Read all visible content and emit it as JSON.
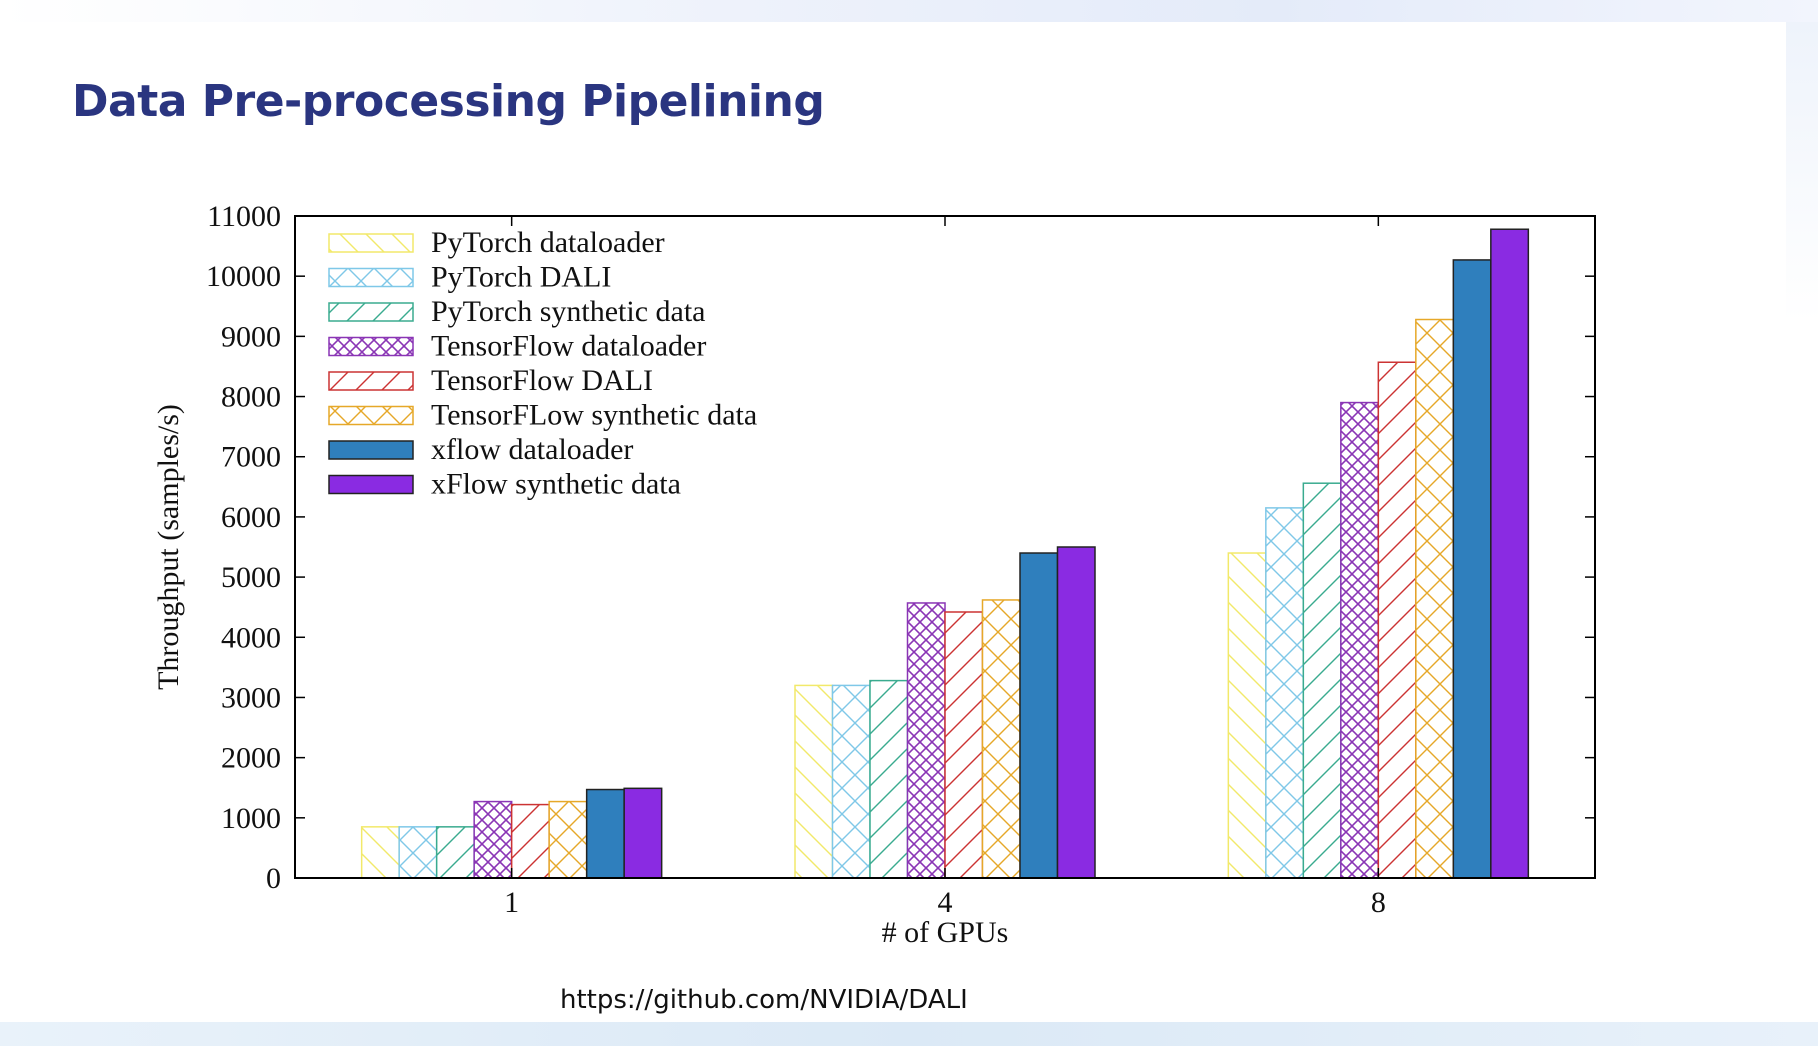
{
  "slide": {
    "title": "Data Pre-processing Pipelining",
    "source": "https://github.com/NVIDIA/DALI"
  },
  "chart_data": {
    "type": "bar",
    "xlabel": "# of GPUs",
    "ylabel": "Throughput (samples/s)",
    "ylim": [
      0,
      11000
    ],
    "yticks": [
      0,
      1000,
      2000,
      3000,
      4000,
      5000,
      6000,
      7000,
      8000,
      9000,
      10000,
      11000
    ],
    "categories": [
      "1",
      "4",
      "8"
    ],
    "legend_position": "top-left",
    "grid": false,
    "series": [
      {
        "name": "PyTorch dataloader",
        "values": [
          850,
          3200,
          5400
        ],
        "color": "#f2e96a",
        "pattern": "diag-back"
      },
      {
        "name": "PyTorch DALI",
        "values": [
          850,
          3200,
          6150
        ],
        "color": "#7fc8e8",
        "pattern": "cross"
      },
      {
        "name": "PyTorch synthetic data",
        "values": [
          850,
          3280,
          6560
        ],
        "color": "#3aab8f",
        "pattern": "diag-fwd"
      },
      {
        "name": "TensorFlow dataloader",
        "values": [
          1270,
          4570,
          7900
        ],
        "color": "#8a35b5",
        "pattern": "dense-cross"
      },
      {
        "name": "TensorFlow DALI",
        "values": [
          1220,
          4420,
          8570
        ],
        "color": "#cc3333",
        "pattern": "diag-fwd"
      },
      {
        "name": "TensorFLow synthetic data",
        "values": [
          1270,
          4620,
          9280
        ],
        "color": "#e6a829",
        "pattern": "cross"
      },
      {
        "name": "xflow dataloader",
        "values": [
          1470,
          5400,
          10270
        ],
        "color": "#2f7fbd",
        "pattern": "solid"
      },
      {
        "name": "xFlow synthetic data",
        "values": [
          1490,
          5500,
          10780
        ],
        "color": "#8a2be2",
        "pattern": "solid"
      }
    ]
  }
}
